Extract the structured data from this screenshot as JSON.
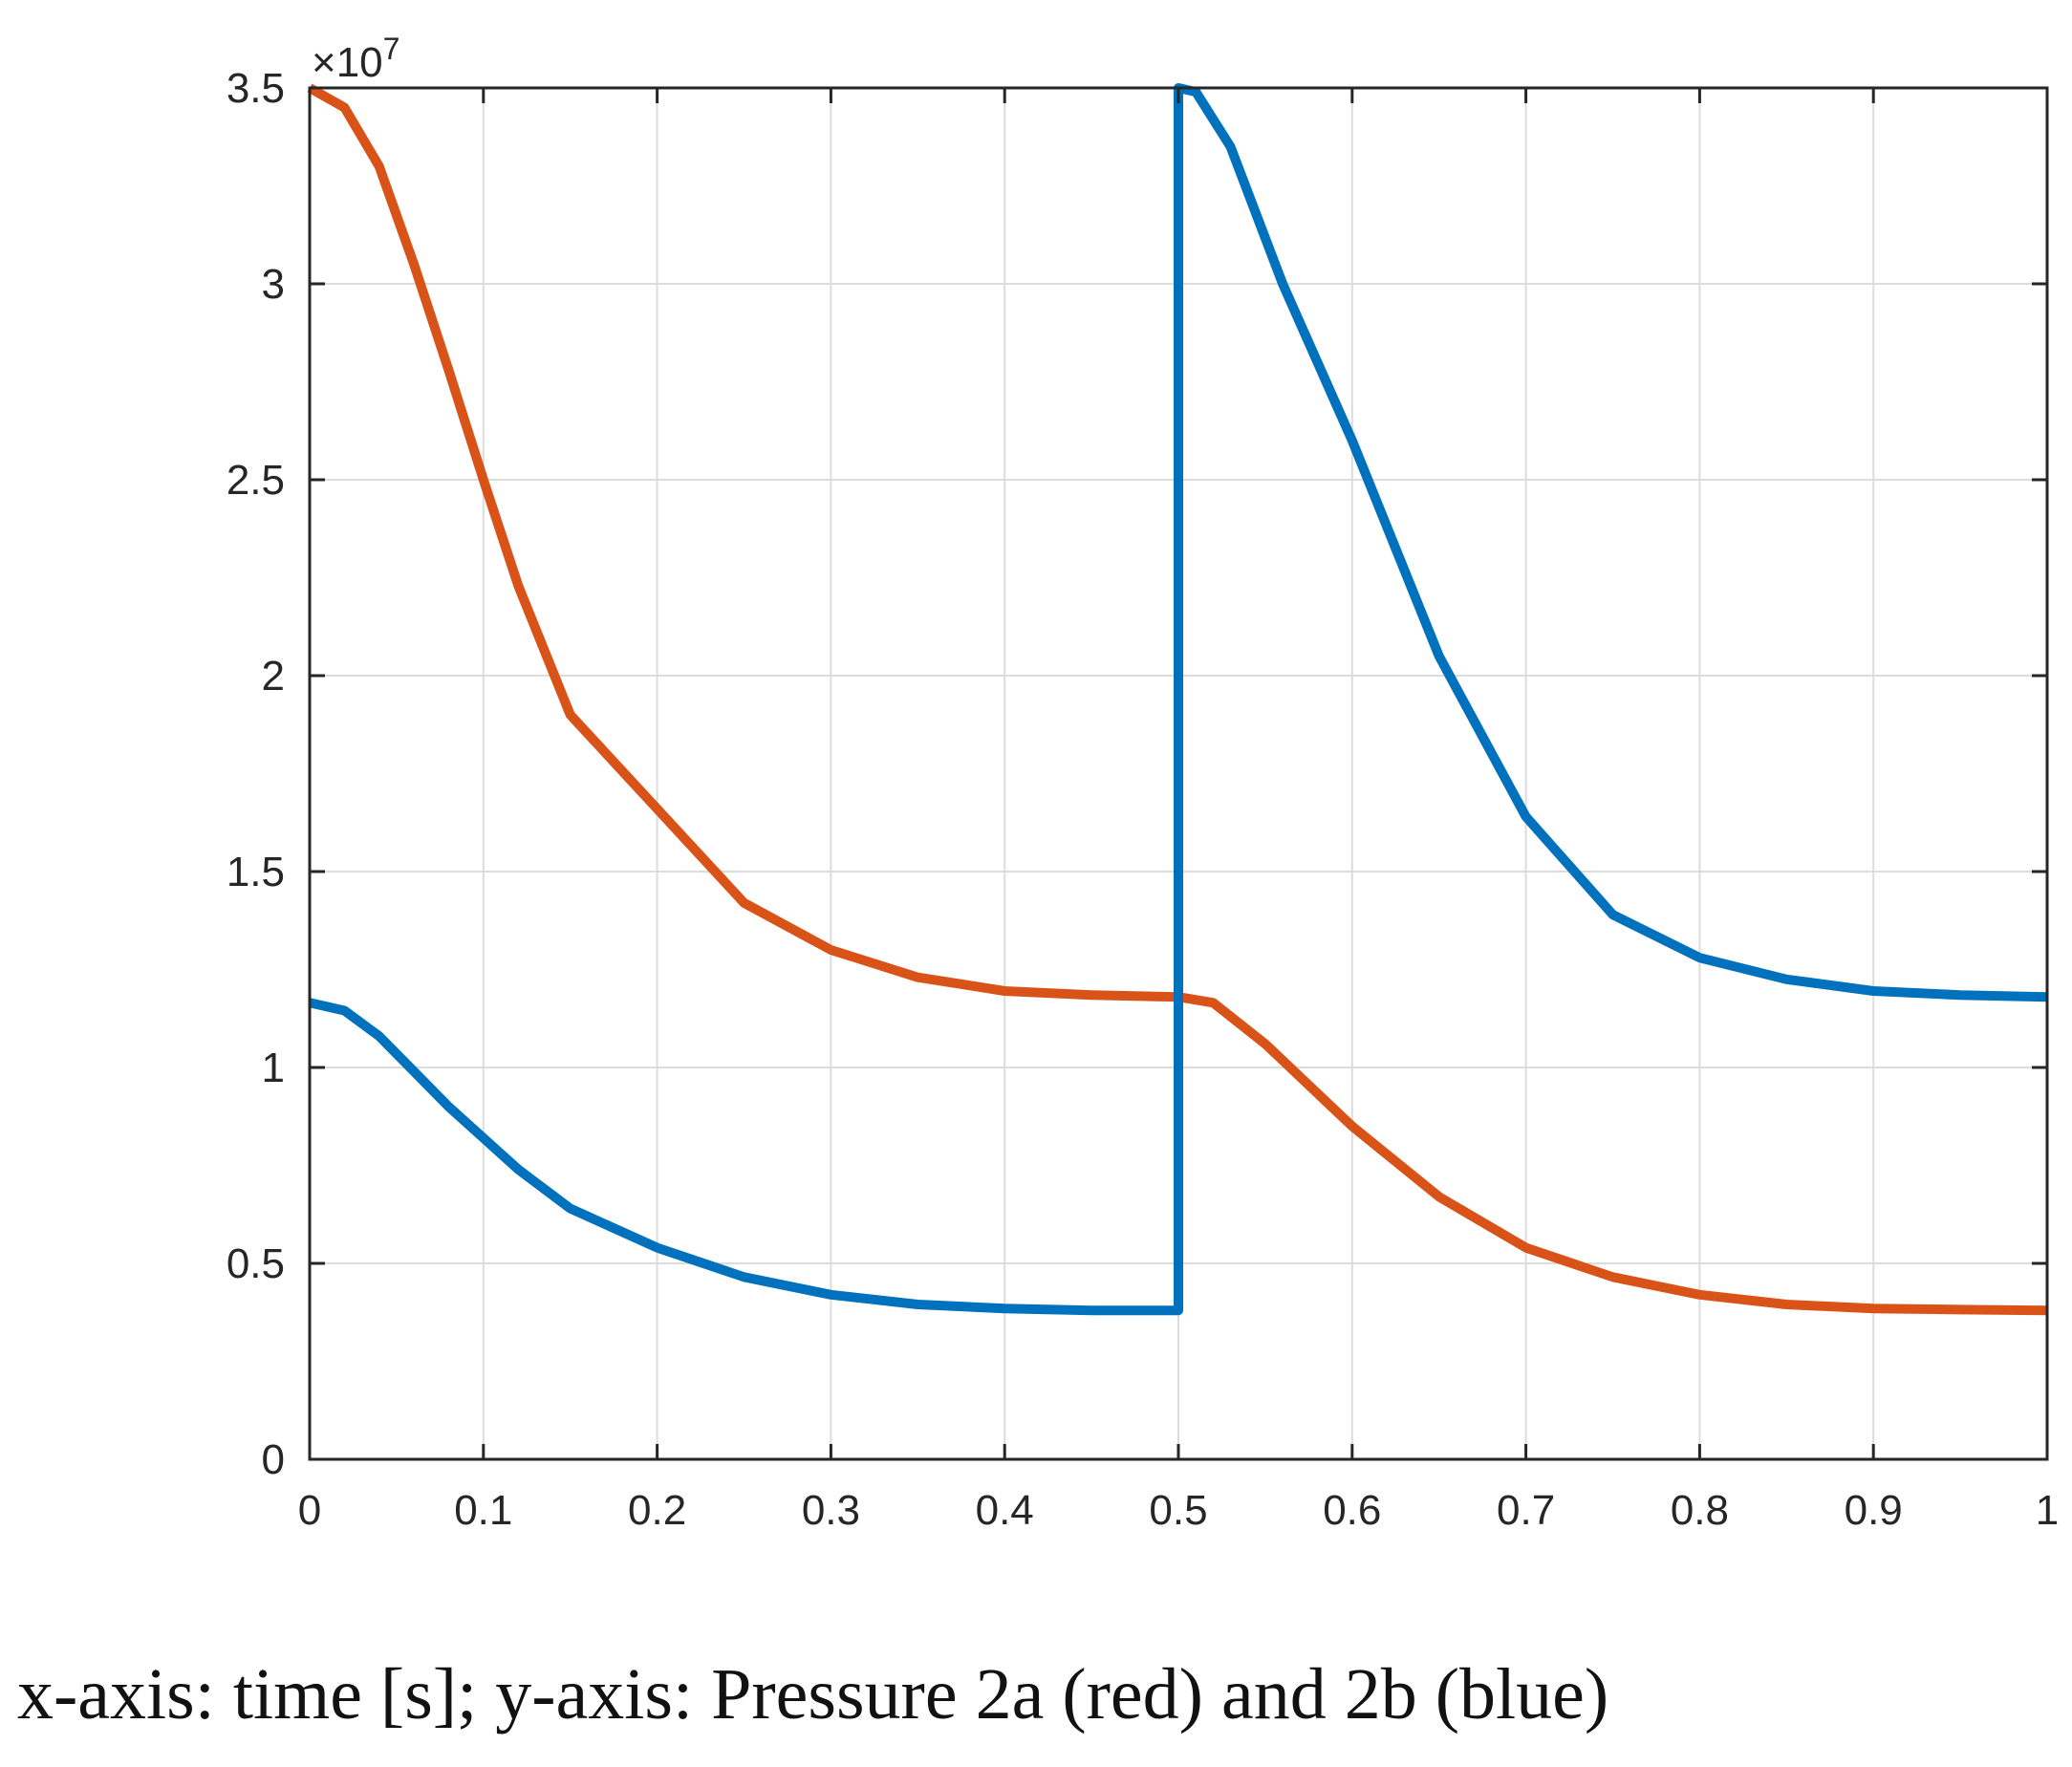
{
  "caption": "x-axis: time [s]; y-axis: Pressure 2a (red) and 2b (blue)",
  "chart_data": {
    "type": "line",
    "title": "",
    "xlabel": "",
    "ylabel": "",
    "xlim": [
      0,
      1
    ],
    "ylim": [
      0,
      35000000
    ],
    "y_exponent_label": "×10",
    "y_exponent_power": "7",
    "grid": true,
    "x_ticks": [
      0,
      0.1,
      0.2,
      0.3,
      0.4,
      0.5,
      0.6,
      0.7,
      0.8,
      0.9,
      1
    ],
    "x_tick_labels": [
      "0",
      "0.1",
      "0.2",
      "0.3",
      "0.4",
      "0.5",
      "0.6",
      "0.7",
      "0.8",
      "0.9",
      "1"
    ],
    "y_ticks": [
      0,
      5000000,
      10000000,
      15000000,
      20000000,
      25000000,
      30000000,
      35000000
    ],
    "y_tick_labels": [
      "0",
      "0.5",
      "1",
      "1.5",
      "2",
      "2.5",
      "3",
      "3.5"
    ],
    "series": [
      {
        "name": "Pressure 2a (red)",
        "color": "#D95319",
        "x": [
          0,
          0.02,
          0.04,
          0.06,
          0.08,
          0.1,
          0.12,
          0.15,
          0.2,
          0.25,
          0.3,
          0.35,
          0.4,
          0.45,
          0.5,
          0.52,
          0.55,
          0.6,
          0.65,
          0.7,
          0.75,
          0.8,
          0.85,
          0.9,
          0.95,
          1.0
        ],
        "values": [
          35000000,
          34500000,
          33000000,
          30500000,
          27800000,
          25000000,
          22300000,
          19000000,
          16600000,
          14200000,
          13000000,
          12300000,
          11950000,
          11850000,
          11800000,
          11650000,
          10600000,
          8500000,
          6700000,
          5400000,
          4650000,
          4200000,
          3950000,
          3850000,
          3820000,
          3800000
        ]
      },
      {
        "name": "Pressure 2b (blue)",
        "color": "#0072BD",
        "x": [
          0,
          0.02,
          0.04,
          0.06,
          0.08,
          0.1,
          0.12,
          0.15,
          0.2,
          0.25,
          0.3,
          0.35,
          0.4,
          0.45,
          0.5,
          0.5,
          0.51,
          0.53,
          0.56,
          0.6,
          0.65,
          0.7,
          0.75,
          0.8,
          0.85,
          0.9,
          0.95,
          1.0
        ],
        "values": [
          11650000,
          11450000,
          10800000,
          9900000,
          9000000,
          8200000,
          7400000,
          6400000,
          5400000,
          4650000,
          4200000,
          3950000,
          3850000,
          3800000,
          3800000,
          35000000,
          34900000,
          33500000,
          30000000,
          26000000,
          20500000,
          16400000,
          13900000,
          12800000,
          12250000,
          11950000,
          11850000,
          11800000
        ]
      }
    ]
  }
}
